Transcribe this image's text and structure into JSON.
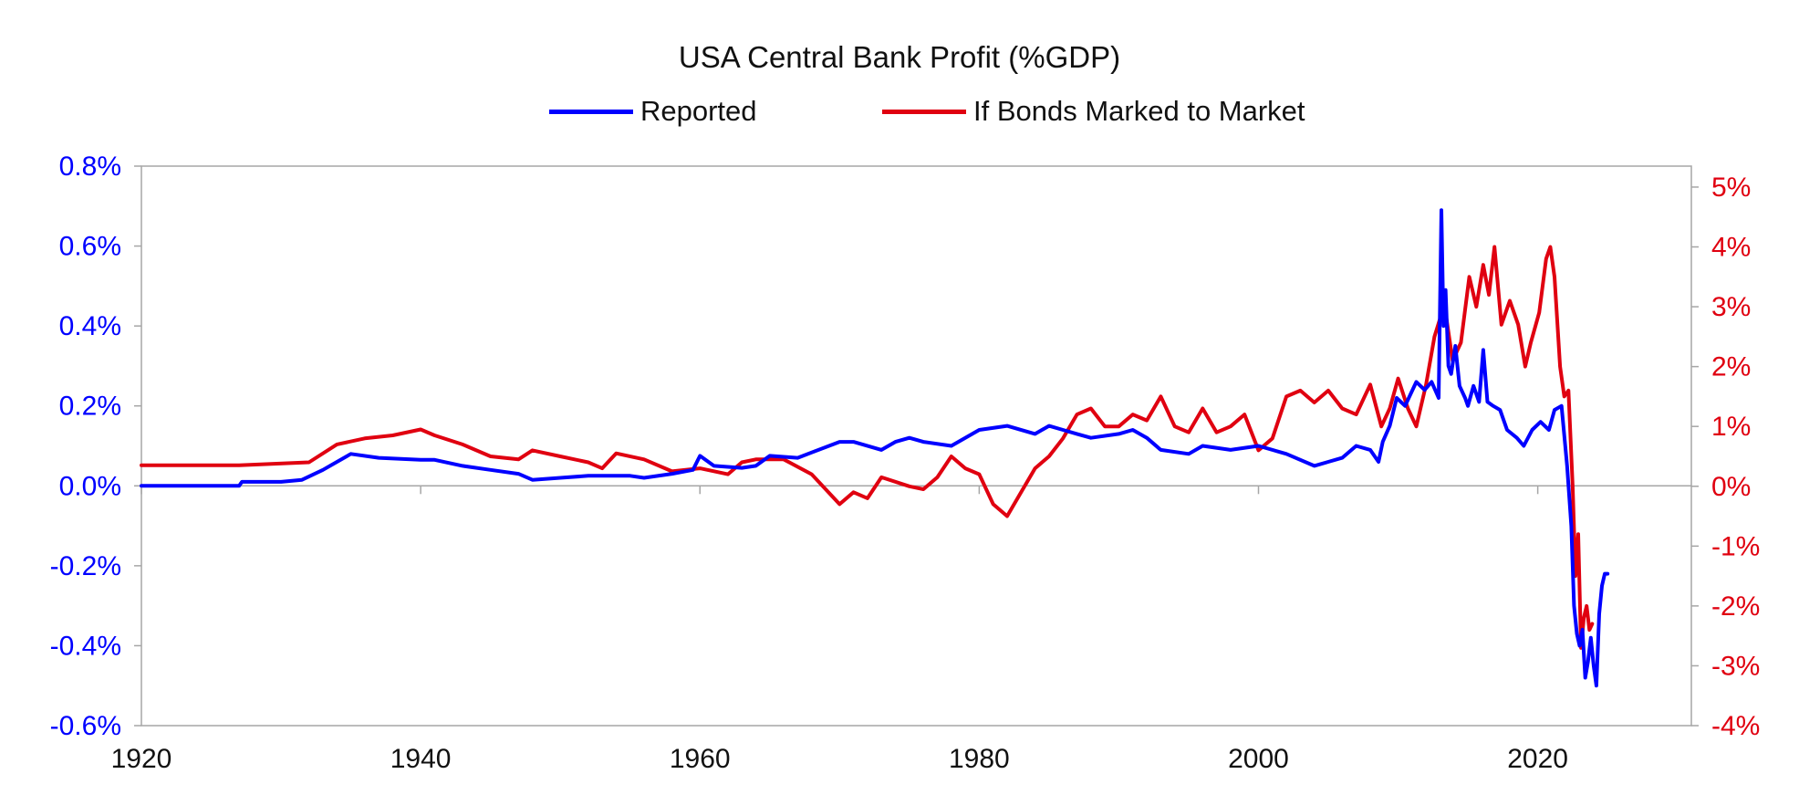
{
  "chart_data": {
    "type": "line",
    "title": "USA Central Bank Profit (%GDP)",
    "xlabel": "",
    "ylabel": "",
    "xlim": [
      1920,
      2031
    ],
    "x_ticks": [
      "1920",
      "1940",
      "1960",
      "1980",
      "2000",
      "2020"
    ],
    "y_left_lim": [
      -0.6,
      0.8
    ],
    "y_left_ticks": [
      "0.8%",
      "0.6%",
      "0.4%",
      "0.2%",
      "0.0%",
      "-0.2%",
      "-0.4%",
      "-0.6%"
    ],
    "y_right_lim": [
      -4,
      5.35
    ],
    "y_right_ticks": [
      "5%",
      "4%",
      "3%",
      "2%",
      "1%",
      "0%",
      "-1%",
      "-2%",
      "-3%",
      "-4%"
    ],
    "legend_placement": "top",
    "grid": false,
    "colors": {
      "reported": "#0000ff",
      "mtm": "#e00010",
      "axis": "#a6a6a6"
    },
    "series": [
      {
        "name": "Reported",
        "axis": "left",
        "x": [
          1920,
          1927,
          1927.2,
          1930,
          1931.5,
          1933,
          1935,
          1937,
          1940,
          1941,
          1943,
          1945,
          1947,
          1948,
          1950,
          1952,
          1955,
          1956,
          1958,
          1959.5,
          1960,
          1961,
          1963,
          1964,
          1965,
          1967,
          1970,
          1971,
          1973,
          1974,
          1975,
          1976,
          1978,
          1980,
          1982,
          1984,
          1985,
          1986,
          1987,
          1988,
          1990,
          1991,
          1992,
          1993,
          1995,
          1996,
          1998,
          2000,
          2002,
          2004,
          2005,
          2006,
          2007,
          2008,
          2008.6,
          2008.9,
          2009.4,
          2009.9,
          2010.5,
          2011.3,
          2011.9,
          2012.4,
          2012.9,
          2013.1,
          2013.25,
          2013.4,
          2013.6,
          2013.8,
          2014.1,
          2014.4,
          2014.8,
          2015,
          2015.4,
          2015.8,
          2016.1,
          2016.4,
          2016.8,
          2017.3,
          2017.8,
          2018.5,
          2019,
          2019.6,
          2020.2,
          2020.8,
          2021.2,
          2021.7,
          2022.1,
          2022.4,
          2022.6,
          2022.8,
          2023.0,
          2023.2,
          2023.4,
          2023.6,
          2023.8,
          2024.0,
          2024.2,
          2024.4,
          2024.6,
          2024.8,
          2025.0
        ],
        "values": [
          0.0,
          0.0,
          0.01,
          0.01,
          0.015,
          0.04,
          0.08,
          0.07,
          0.065,
          0.065,
          0.05,
          0.04,
          0.03,
          0.015,
          0.02,
          0.025,
          0.025,
          0.02,
          0.03,
          0.04,
          0.075,
          0.05,
          0.045,
          0.05,
          0.075,
          0.07,
          0.11,
          0.11,
          0.09,
          0.11,
          0.12,
          0.11,
          0.1,
          0.14,
          0.15,
          0.13,
          0.15,
          0.14,
          0.13,
          0.12,
          0.13,
          0.14,
          0.12,
          0.09,
          0.08,
          0.1,
          0.09,
          0.1,
          0.08,
          0.05,
          0.06,
          0.07,
          0.1,
          0.09,
          0.06,
          0.11,
          0.15,
          0.22,
          0.2,
          0.26,
          0.24,
          0.26,
          0.22,
          0.69,
          0.4,
          0.49,
          0.3,
          0.28,
          0.35,
          0.25,
          0.22,
          0.2,
          0.25,
          0.21,
          0.34,
          0.21,
          0.2,
          0.19,
          0.14,
          0.12,
          0.1,
          0.14,
          0.16,
          0.14,
          0.19,
          0.2,
          0.05,
          -0.1,
          -0.3,
          -0.37,
          -0.4,
          -0.36,
          -0.48,
          -0.44,
          -0.38,
          -0.45,
          -0.5,
          -0.32,
          -0.25,
          -0.22,
          -0.22
        ]
      },
      {
        "name": "If Bonds Marked to Market",
        "axis": "right",
        "x": [
          1920,
          1927,
          1932,
          1934,
          1936,
          1938,
          1940,
          1941,
          1943,
          1945,
          1947,
          1948,
          1950,
          1952,
          1953,
          1954,
          1956,
          1958,
          1960,
          1962,
          1963,
          1964,
          1966,
          1968,
          1970,
          1971,
          1972,
          1973,
          1975,
          1976,
          1977,
          1978,
          1979,
          1980,
          1981,
          1982,
          1983,
          1984,
          1985,
          1986,
          1987,
          1988,
          1989,
          1990,
          1991,
          1992,
          1993,
          1994,
          1995,
          1996,
          1997,
          1998,
          1999,
          2000,
          2001,
          2002,
          2003,
          2004,
          2005,
          2006,
          2007,
          2008,
          2008.8,
          2009.4,
          2010,
          2010.7,
          2011.3,
          2012,
          2012.6,
          2013.0,
          2013.4,
          2013.9,
          2014.5,
          2015.1,
          2015.6,
          2016.1,
          2016.5,
          2016.9,
          2017.4,
          2018,
          2018.6,
          2019.1,
          2019.5,
          2020.1,
          2020.6,
          2020.9,
          2021.2,
          2021.6,
          2021.9,
          2022.2,
          2022.5,
          2022.7,
          2022.9,
          2023.1,
          2023.3,
          2023.5,
          2023.7,
          2023.9
        ],
        "values": [
          0.35,
          0.35,
          0.4,
          0.7,
          0.8,
          0.85,
          0.95,
          0.85,
          0.7,
          0.5,
          0.45,
          0.6,
          0.5,
          0.4,
          0.3,
          0.55,
          0.45,
          0.25,
          0.3,
          0.2,
          0.4,
          0.45,
          0.45,
          0.2,
          -0.3,
          -0.1,
          -0.2,
          0.15,
          0.0,
          -0.05,
          0.15,
          0.5,
          0.3,
          0.2,
          -0.3,
          -0.5,
          -0.1,
          0.3,
          0.5,
          0.8,
          1.2,
          1.3,
          1.0,
          1.0,
          1.2,
          1.1,
          1.5,
          1.0,
          0.9,
          1.3,
          0.9,
          1.0,
          1.2,
          0.6,
          0.8,
          1.5,
          1.6,
          1.4,
          1.6,
          1.3,
          1.2,
          1.7,
          1.0,
          1.3,
          1.8,
          1.3,
          1.0,
          1.7,
          2.5,
          2.8,
          2.9,
          2.1,
          2.4,
          3.5,
          3.0,
          3.7,
          3.2,
          4.0,
          2.7,
          3.1,
          2.7,
          2.0,
          2.4,
          2.9,
          3.8,
          4.0,
          3.5,
          2.0,
          1.5,
          1.6,
          0.0,
          -1.5,
          -0.8,
          -2.7,
          -2.2,
          -2.0,
          -2.4,
          -2.3
        ]
      }
    ]
  }
}
